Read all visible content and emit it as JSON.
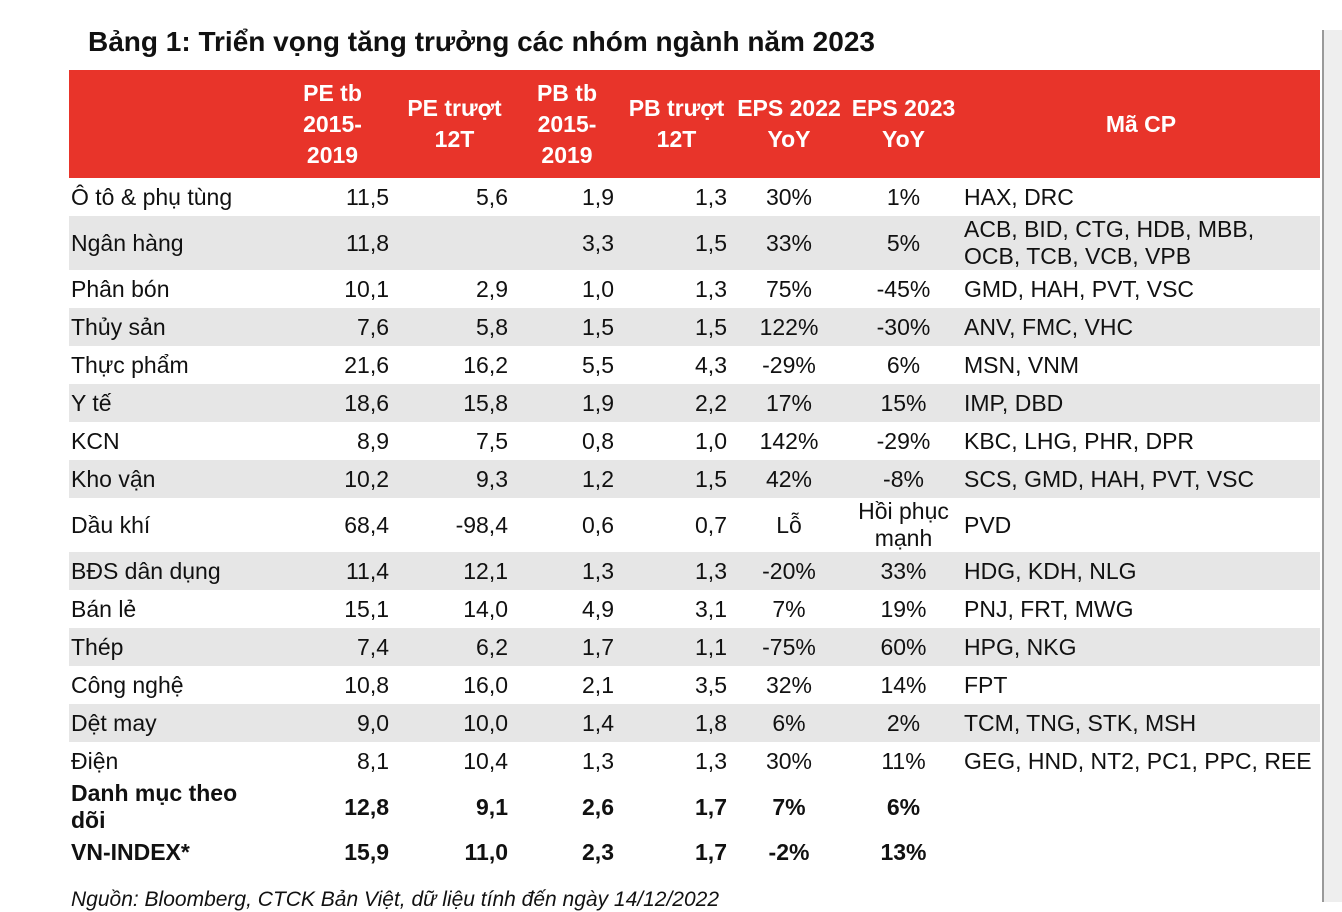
{
  "header": {
    "title": "Bảng 1: Triển vọng tăng trưởng các nhóm ngành năm 2023"
  },
  "table": {
    "columns": [
      [],
      [
        "PE tb",
        "2015-",
        "2019"
      ],
      [
        "PE trượt",
        "12T"
      ],
      [
        "PB tb",
        "2015-",
        "2019"
      ],
      [
        "PB  trượt",
        "12T"
      ],
      [
        "EPS 2022",
        "YoY"
      ],
      [
        "EPS 2023",
        "YoY"
      ],
      [
        "Mã CP"
      ]
    ],
    "rows": [
      [
        "Ô tô & phụ tùng",
        "11,5",
        "5,6",
        "1,9",
        "1,3",
        "30%",
        "1%",
        "HAX, DRC"
      ],
      [
        "Ngân hàng",
        "11,8",
        null,
        "3,3",
        "1,5",
        "33%",
        "5%",
        "ACB, BID, CTG, HDB, MBB, OCB, TCB, VCB, VPB"
      ],
      [
        "Phân bón",
        "10,1",
        "2,9",
        "1,0",
        "1,3",
        "75%",
        "-45%",
        "GMD, HAH, PVT, VSC"
      ],
      [
        "Thủy sản",
        "7,6",
        "5,8",
        "1,5",
        "1,5",
        "122%",
        "-30%",
        "ANV, FMC, VHC"
      ],
      [
        "Thực phẩm",
        "21,6",
        "16,2",
        "5,5",
        "4,3",
        "-29%",
        "6%",
        "MSN, VNM"
      ],
      [
        "Y tế",
        "18,6",
        "15,8",
        "1,9",
        "2,2",
        "17%",
        "15%",
        "IMP, DBD"
      ],
      [
        "KCN",
        "8,9",
        "7,5",
        "0,8",
        "1,0",
        "142%",
        "-29%",
        "KBC, LHG, PHR, DPR"
      ],
      [
        "Kho vận",
        "10,2",
        "9,3",
        "1,2",
        "1,5",
        "42%",
        "-8%",
        "SCS, GMD, HAH, PVT, VSC"
      ],
      [
        "Dầu khí",
        "68,4",
        "-98,4",
        "0,6",
        "0,7",
        "Lỗ",
        "Hồi phục mạnh",
        "PVD"
      ],
      [
        "BĐS dân dụng",
        "11,4",
        "12,1",
        "1,3",
        "1,3",
        "-20%",
        "33%",
        "HDG, KDH, NLG"
      ],
      [
        "Bán lẻ",
        "15,1",
        "14,0",
        "4,9",
        "3,1",
        "7%",
        "19%",
        "PNJ, FRT, MWG"
      ],
      [
        "Thép",
        "7,4",
        "6,2",
        "1,7",
        "1,1",
        "-75%",
        "60%",
        "HPG, NKG"
      ],
      [
        "Công nghệ",
        "10,8",
        "16,0",
        "2,1",
        "3,5",
        "32%",
        "14%",
        "FPT"
      ],
      [
        "Dệt may",
        "9,0",
        "10,0",
        "1,4",
        "1,8",
        "6%",
        "2%",
        "TCM, TNG, STK, MSH"
      ],
      [
        "Điện",
        "8,1",
        "10,4",
        "1,3",
        "1,3",
        "30%",
        "11%",
        "GEG, HND, NT2, PC1, PPC, REE"
      ]
    ],
    "summary_rows": [
      [
        "Danh mục theo dõi",
        "12,8",
        "9,1",
        "2,6",
        "1,7",
        "7%",
        "6%"
      ],
      [
        "VN-INDEX*",
        "15,9",
        "11,0",
        "2,3",
        "1,7",
        "-2%",
        "13%"
      ]
    ]
  },
  "source": "Nguồn: Bloomberg, CTCK Bản Việt, dữ liệu tính đến ngày 14/12/2022"
}
